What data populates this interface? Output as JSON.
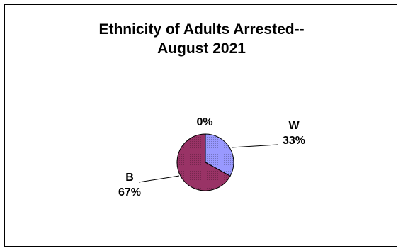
{
  "chart_data": {
    "type": "pie",
    "title": [
      "Ethnicity of Adults Arrested--",
      "August 2021"
    ],
    "slices": [
      {
        "category": "W",
        "value": 33,
        "label": "33%",
        "color": "#9999ff"
      },
      {
        "category": "B",
        "value": 67,
        "label": "67%",
        "color": "#993366"
      },
      {
        "category": "",
        "value": 0,
        "label": "0%",
        "color": "#ffffcc"
      }
    ],
    "legend": "none"
  }
}
